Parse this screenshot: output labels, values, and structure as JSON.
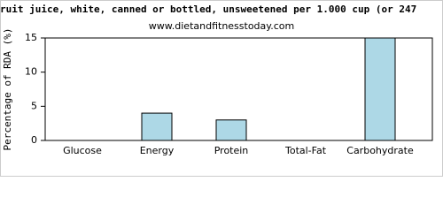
{
  "chart_data": {
    "type": "bar",
    "title": "ruit juice, white, canned or bottled, unsweetened per 1.000 cup (or 247",
    "subtitle": "www.dietandfitnesstoday.com",
    "y_label": "Percentage of RDA (%)",
    "categories": [
      "Glucose",
      "Energy",
      "Protein",
      "Total-Fat",
      "Carbohydrate"
    ],
    "values": [
      0,
      4,
      3,
      0,
      15
    ],
    "color": "#add8e6",
    "ylim": [
      0,
      15
    ],
    "yticks": [
      0,
      5,
      10,
      15
    ],
    "grid": false
  }
}
